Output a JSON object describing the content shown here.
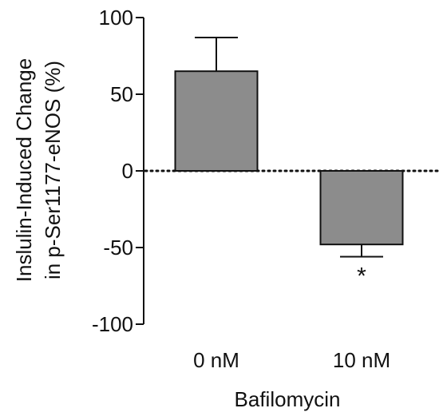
{
  "chart_data": {
    "type": "bar",
    "categories": [
      "0 nM",
      "10 nM"
    ],
    "values": [
      65,
      -48
    ],
    "error_upper": [
      87,
      null
    ],
    "error_lower": [
      null,
      -56
    ],
    "annotations": [
      "",
      "*"
    ],
    "xlabel": "Bafilomycin",
    "ylabel_lines": [
      "Inslulin-Induced Change",
      "in p-Ser1177-eNOS (%)"
    ],
    "ylim": [
      -100,
      100
    ],
    "yticks": [
      100,
      50,
      0,
      -50,
      -100
    ],
    "ytick_labels": [
      "100",
      "50",
      "0",
      "-50",
      "-100"
    ],
    "zero_line": "dotted",
    "grid": false,
    "bar_color": "#8c8c8c",
    "edge_color": "#111111"
  }
}
